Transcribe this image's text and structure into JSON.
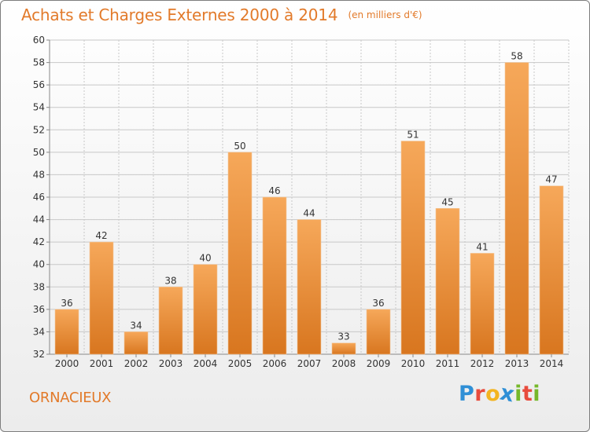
{
  "header": {
    "title": "Achats et Charges Externes 2000 à 2014",
    "unit": "(en milliers d'€)"
  },
  "footer": {
    "commune": "ORNACIEUX",
    "logo": {
      "letters": [
        "P",
        "r",
        "o",
        "x",
        "i",
        "t",
        "i"
      ]
    }
  },
  "colors": {
    "accent": "#e27a2a",
    "bar_top": "#f6a85a",
    "bar_bottom": "#d8761f",
    "grid": "#c8c8c8"
  },
  "chart_data": {
    "type": "bar",
    "title": "Achats et Charges Externes 2000 à 2014",
    "subtitle": "(en milliers d'€)",
    "xlabel": "",
    "ylabel": "",
    "categories": [
      "2000",
      "2001",
      "2002",
      "2003",
      "2004",
      "2005",
      "2006",
      "2007",
      "2008",
      "2009",
      "2010",
      "2011",
      "2012",
      "2013",
      "2014"
    ],
    "values": [
      36,
      42,
      34,
      38,
      40,
      50,
      46,
      44,
      33,
      36,
      51,
      45,
      41,
      58,
      47
    ],
    "ylim": [
      32,
      60
    ],
    "yticks": [
      32,
      34,
      36,
      38,
      40,
      42,
      44,
      46,
      48,
      50,
      52,
      54,
      56,
      58,
      60
    ],
    "grid": true,
    "data_labels": true
  }
}
